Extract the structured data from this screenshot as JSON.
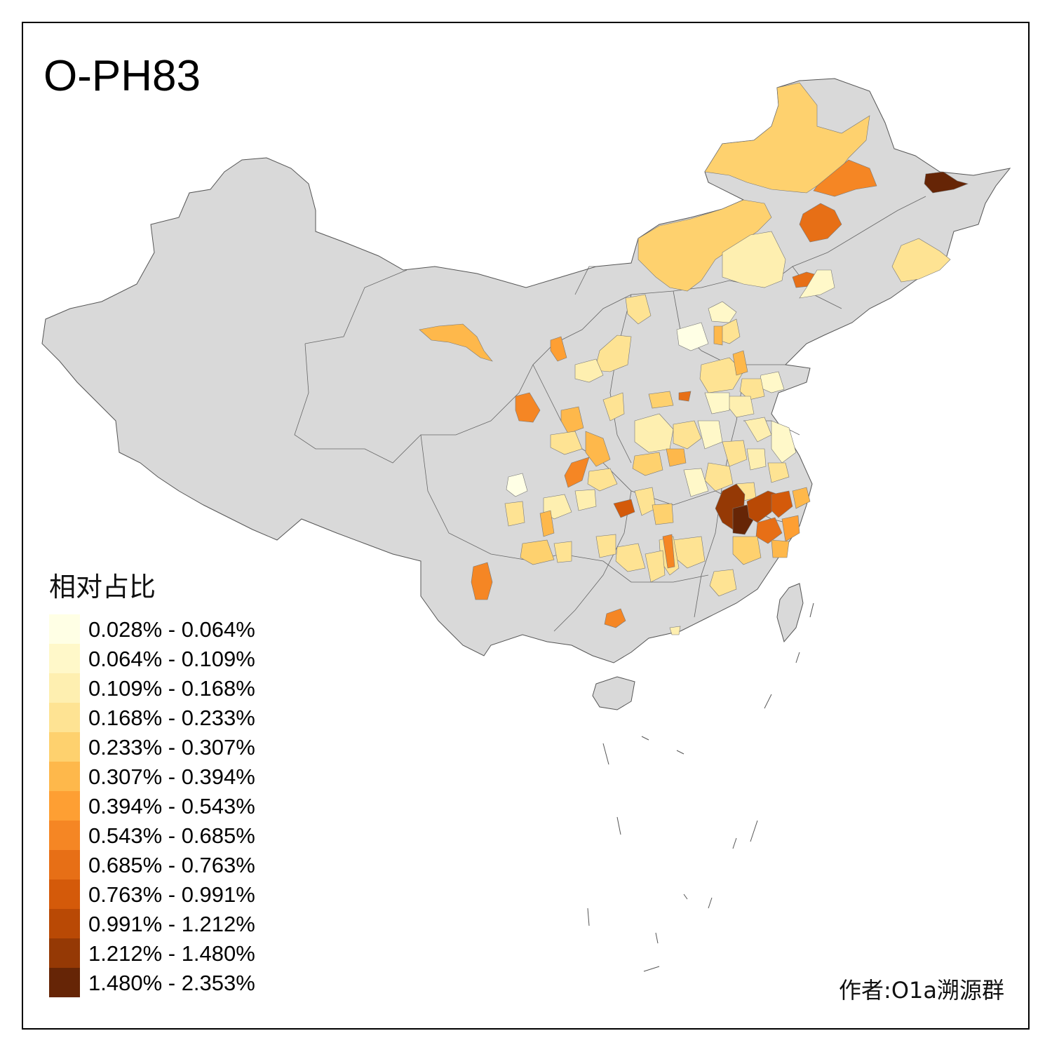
{
  "title": "O-PH83",
  "credit": "作者:O1a溯源群",
  "legend": {
    "title": "相对占比",
    "items": [
      {
        "label": "0.028% - 0.064%",
        "color": "#FFFFE5"
      },
      {
        "label": "0.064% - 0.109%",
        "color": "#FFF8C9"
      },
      {
        "label": "0.109% - 0.168%",
        "color": "#FEEFB0"
      },
      {
        "label": "0.168% - 0.233%",
        "color": "#FEE393"
      },
      {
        "label": "0.233% - 0.307%",
        "color": "#FED16E"
      },
      {
        "label": "0.307% - 0.394%",
        "color": "#FEB84B"
      },
      {
        "label": "0.394% - 0.543%",
        "color": "#FE9F33"
      },
      {
        "label": "0.543% - 0.685%",
        "color": "#F58624"
      },
      {
        "label": "0.685% - 0.763%",
        "color": "#E76F16"
      },
      {
        "label": "0.763% - 0.991%",
        "color": "#D45A0A"
      },
      {
        "label": "0.991% - 1.212%",
        "color": "#B94905"
      },
      {
        "label": "1.212% - 1.480%",
        "color": "#953905"
      },
      {
        "label": "1.480% - 2.353%",
        "color": "#662506"
      }
    ]
  },
  "colors": {
    "no_data": "#D9D9D9",
    "border": "#555555",
    "frame": "#000000"
  }
}
